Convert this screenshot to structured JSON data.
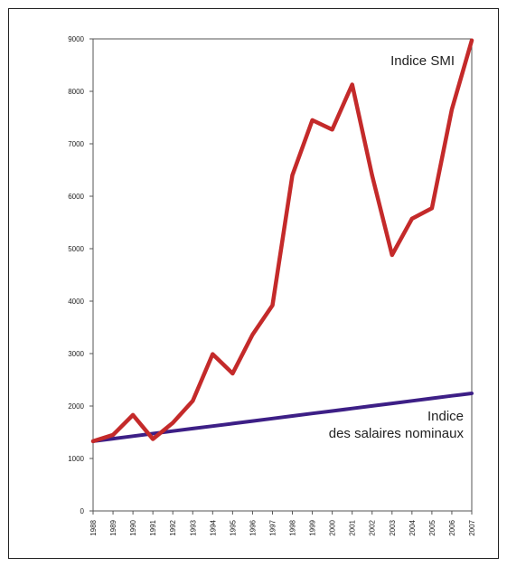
{
  "chart_data": {
    "type": "line",
    "title": "",
    "xlabel": "",
    "ylabel": "",
    "x": [
      "1988",
      "1989",
      "1990",
      "1991",
      "1992",
      "1993",
      "1994",
      "1995",
      "1996",
      "1997",
      "1998",
      "1999",
      "2000",
      "2001",
      "2002",
      "2003",
      "2004",
      "2005",
      "2006",
      "2007"
    ],
    "ylim": [
      0,
      9000
    ],
    "yticks": [
      "0",
      "1000",
      "2000",
      "3000",
      "4000",
      "5000",
      "6000",
      "7000",
      "8000",
      "9000"
    ],
    "grid": false,
    "series": [
      {
        "name": "Indice SMI",
        "color": "#c42a2a",
        "values": [
          1330,
          1450,
          1830,
          1370,
          1680,
          2100,
          2990,
          2620,
          3360,
          3920,
          6400,
          7450,
          7270,
          8130,
          6400,
          4880,
          5570,
          5770,
          7650,
          8970
        ]
      },
      {
        "name": "Indice des salaires nominaux",
        "name_lines": [
          "Indice",
          "des salaires nominaux"
        ],
        "color": "#3d1f86",
        "values": [
          1330,
          1378,
          1426,
          1474,
          1522,
          1570,
          1618,
          1666,
          1714,
          1762,
          1810,
          1858,
          1906,
          1954,
          2002,
          2050,
          2098,
          2146,
          2194,
          2242
        ]
      }
    ]
  }
}
